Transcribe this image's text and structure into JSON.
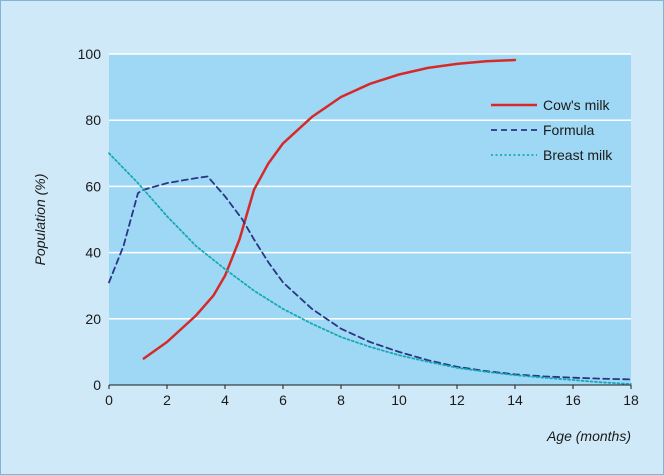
{
  "chart_data": {
    "type": "line",
    "title": "",
    "xlabel": "Age (months)",
    "ylabel": "Population (%)",
    "xlim": [
      0,
      18
    ],
    "ylim": [
      0,
      100
    ],
    "x_ticks": [
      0,
      2,
      4,
      6,
      8,
      10,
      12,
      14,
      16,
      18
    ],
    "y_ticks": [
      0,
      20,
      40,
      60,
      80,
      100
    ],
    "grid": "horizontal",
    "legend_position": "top-right",
    "background_color": "#cfe9f8",
    "plot_background_color": "#9fd8f5",
    "series": [
      {
        "name": "Cow's milk",
        "color": "#d62a2a",
        "style": "solid",
        "points": [
          [
            1.2,
            8
          ],
          [
            2,
            13
          ],
          [
            3,
            21
          ],
          [
            3.6,
            27
          ],
          [
            4,
            33
          ],
          [
            4.5,
            44
          ],
          [
            4.8,
            53
          ],
          [
            5,
            59
          ],
          [
            5.5,
            67
          ],
          [
            6,
            73
          ],
          [
            7,
            81
          ],
          [
            8,
            87
          ],
          [
            9,
            91
          ],
          [
            10,
            93.8
          ],
          [
            11,
            95.8
          ],
          [
            12,
            97
          ],
          [
            13,
            97.8
          ],
          [
            14,
            98.2
          ]
        ]
      },
      {
        "name": "Formula",
        "color": "#2a3585",
        "style": "dashed",
        "points": [
          [
            0,
            31
          ],
          [
            0.5,
            42
          ],
          [
            1,
            58
          ],
          [
            1.2,
            59
          ],
          [
            2,
            61
          ],
          [
            3,
            62.5
          ],
          [
            3.4,
            63
          ],
          [
            4,
            57
          ],
          [
            4.6,
            50
          ],
          [
            5,
            44
          ],
          [
            5.5,
            37
          ],
          [
            6,
            31
          ],
          [
            7,
            23
          ],
          [
            8,
            17
          ],
          [
            9,
            13
          ],
          [
            10,
            10
          ],
          [
            11,
            7.5
          ],
          [
            12,
            5.5
          ],
          [
            13,
            4.2
          ],
          [
            14,
            3.2
          ],
          [
            15,
            2.6
          ],
          [
            16,
            2.2
          ],
          [
            17,
            1.9
          ],
          [
            18,
            1.7
          ]
        ]
      },
      {
        "name": "Breast milk",
        "color": "#17a9b4",
        "style": "dotted",
        "points": [
          [
            0,
            70
          ],
          [
            1,
            61
          ],
          [
            2,
            51
          ],
          [
            3,
            42
          ],
          [
            4,
            35
          ],
          [
            5,
            28.5
          ],
          [
            6,
            23
          ],
          [
            7,
            18.5
          ],
          [
            8,
            14.5
          ],
          [
            9,
            11.5
          ],
          [
            10,
            9
          ],
          [
            11,
            7
          ],
          [
            12,
            5.2
          ],
          [
            13,
            4
          ],
          [
            14,
            3
          ],
          [
            15,
            2.2
          ],
          [
            16,
            1.5
          ],
          [
            17,
            0.8
          ],
          [
            18,
            0.3
          ]
        ]
      }
    ]
  }
}
